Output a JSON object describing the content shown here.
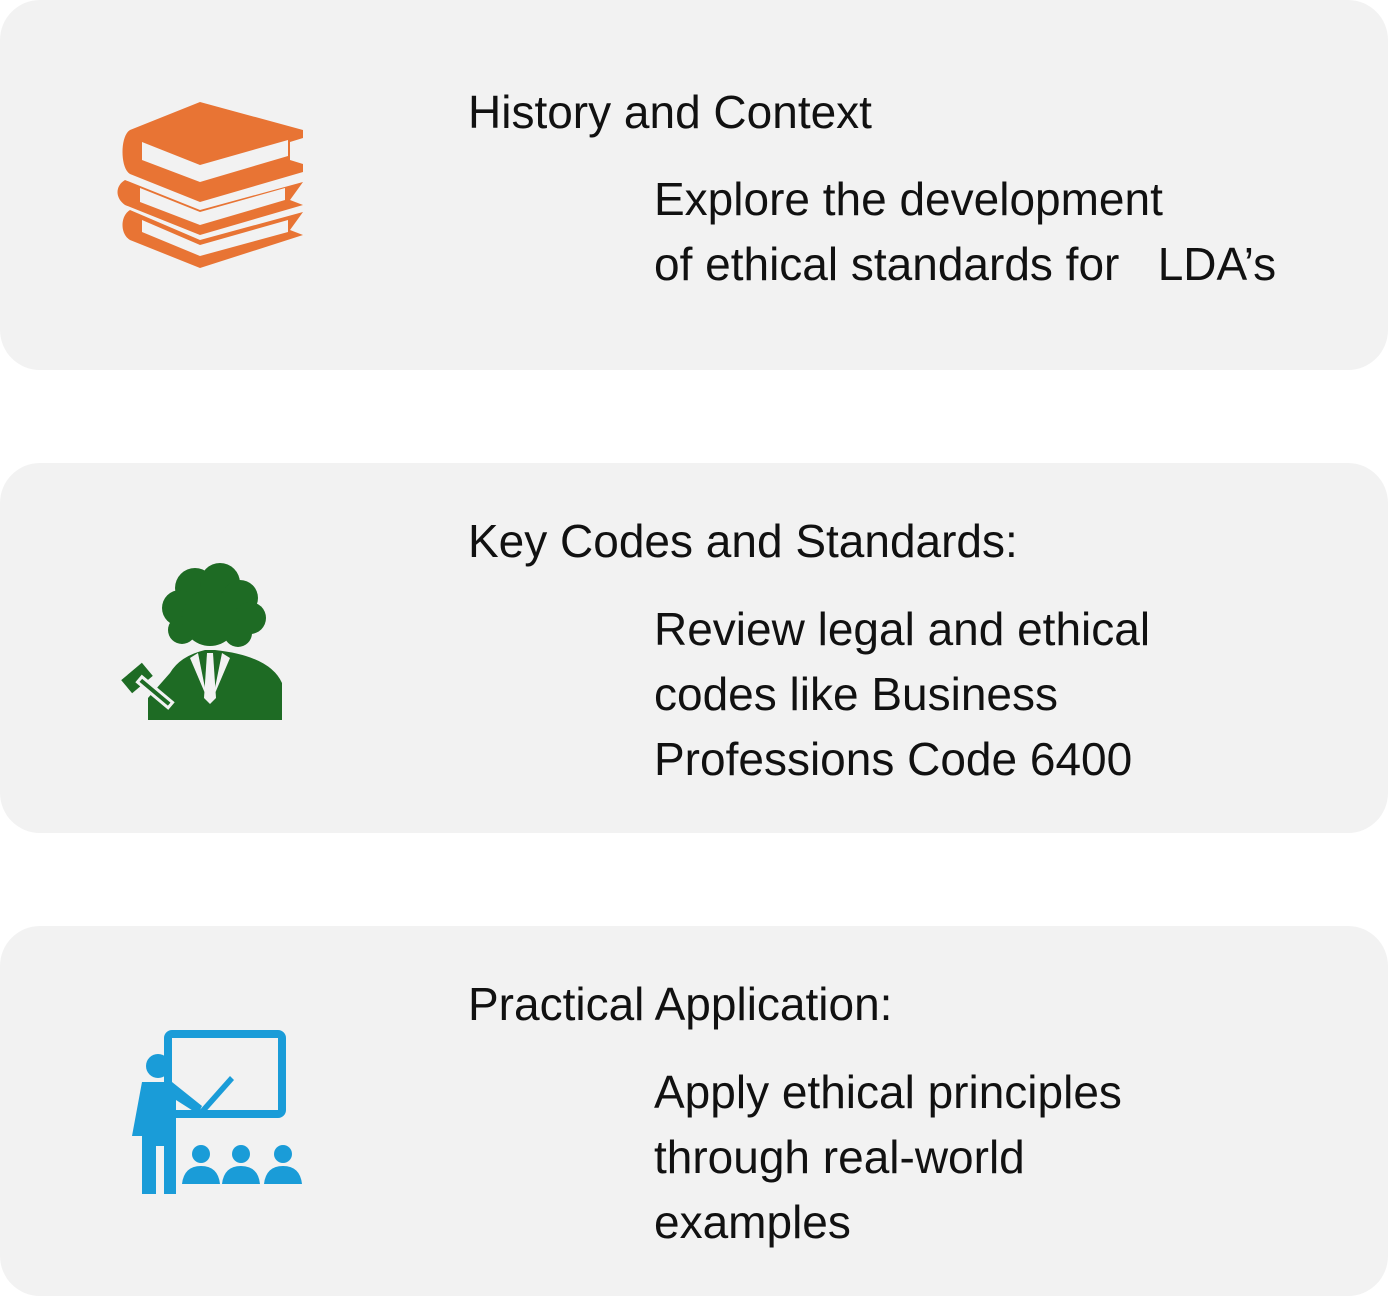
{
  "cards": [
    {
      "title": "History and Context",
      "description": [
        "Explore the development",
        "of ethical standards for   LDA’s"
      ]
    },
    {
      "title": "Key Codes and Standards:",
      "description": [
        "Review legal and ethical",
        "codes like Business",
        "Professions Code 6400"
      ]
    },
    {
      "title": "Practical Application:",
      "description": [
        "Apply ethical principles",
        "through real-world",
        "examples"
      ]
    }
  ]
}
